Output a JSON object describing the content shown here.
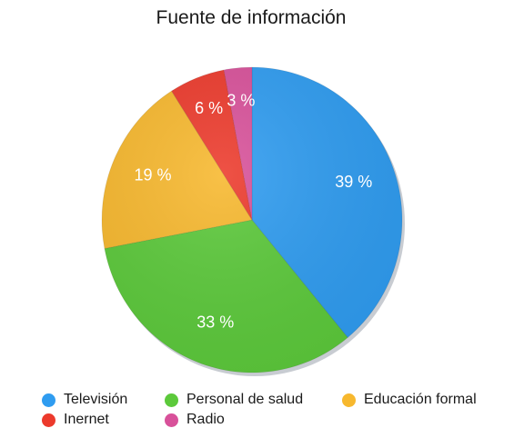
{
  "chart_data": {
    "type": "pie",
    "title": "Fuente de información",
    "categories": [
      "Televisión",
      "Personal de salud",
      "Educación formal",
      "Inernet",
      "Radio"
    ],
    "values": [
      39,
      33,
      19,
      6,
      3
    ],
    "labels": [
      "39 %",
      "33 %",
      "19 %",
      "6 %",
      "3 %"
    ],
    "colors": [
      "#2f9cf0",
      "#5cc93b",
      "#f7b82e",
      "#ec3a2c",
      "#d8519a"
    ],
    "legend_position": "bottom"
  }
}
